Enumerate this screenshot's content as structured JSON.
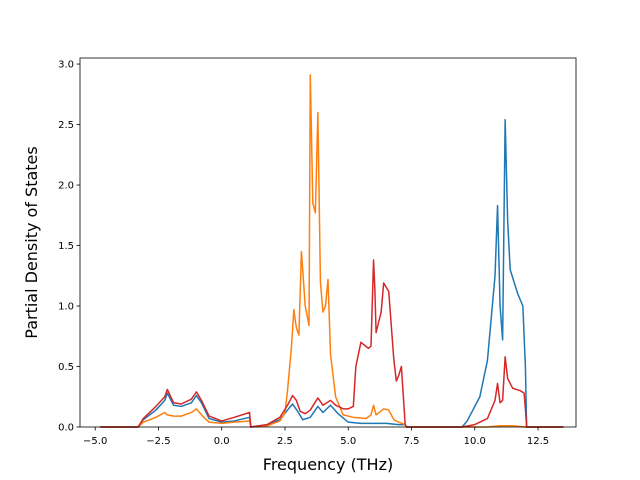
{
  "chart_data": {
    "type": "line",
    "title": "",
    "xlabel": "Frequency (THz)",
    "ylabel": "Partial Density of States",
    "xlim": [
      -5.6,
      14.0
    ],
    "ylim": [
      0,
      3.05
    ],
    "grid": false,
    "legend": "none",
    "xticks": [
      -5.0,
      -2.5,
      0.0,
      2.5,
      5.0,
      7.5,
      10.0,
      12.5
    ],
    "xtick_labels": [
      "−5.0",
      "−2.5",
      "0.0",
      "2.5",
      "5.0",
      "7.5",
      "10.0",
      "12.5"
    ],
    "yticks": [
      0.0,
      0.5,
      1.0,
      1.5,
      2.0,
      2.5,
      3.0
    ],
    "ytick_labels": [
      "0.0",
      "0.5",
      "1.0",
      "1.5",
      "2.0",
      "2.5",
      "3.0"
    ],
    "series": [
      {
        "color": "#1f77b4",
        "x": [
          -4.8,
          -3.3,
          -3.1,
          -2.6,
          -2.25,
          -2.15,
          -1.9,
          -1.6,
          -1.2,
          -1.0,
          -0.8,
          -0.5,
          0.0,
          0.5,
          1.1,
          1.15,
          1.8,
          2.3,
          2.6,
          2.8,
          3.0,
          3.2,
          3.5,
          3.8,
          4.0,
          4.3,
          4.6,
          5.0,
          5.5,
          6.0,
          6.5,
          7.0,
          7.25,
          7.3,
          9.5,
          9.7,
          10.2,
          10.5,
          10.8,
          10.9,
          11.0,
          11.1,
          11.2,
          11.3,
          11.4,
          11.7,
          11.9,
          12.0,
          12.05,
          13.5
        ],
        "y": [
          0.0,
          0.0,
          0.06,
          0.14,
          0.22,
          0.28,
          0.18,
          0.17,
          0.2,
          0.26,
          0.2,
          0.07,
          0.04,
          0.05,
          0.08,
          0.0,
          0.02,
          0.06,
          0.14,
          0.19,
          0.13,
          0.06,
          0.08,
          0.17,
          0.12,
          0.18,
          0.11,
          0.04,
          0.03,
          0.03,
          0.03,
          0.02,
          0.02,
          0.0,
          0.0,
          0.05,
          0.25,
          0.55,
          1.25,
          1.83,
          1.0,
          0.72,
          2.54,
          1.7,
          1.3,
          1.1,
          1.0,
          0.5,
          0.0,
          0.0
        ]
      },
      {
        "color": "#ff7f0e",
        "x": [
          -4.8,
          -3.3,
          -3.1,
          -2.6,
          -2.25,
          -2.15,
          -1.9,
          -1.6,
          -1.2,
          -1.0,
          -0.8,
          -0.5,
          0.0,
          0.5,
          1.1,
          1.15,
          1.8,
          2.3,
          2.5,
          2.6,
          2.75,
          2.85,
          2.95,
          3.05,
          3.15,
          3.3,
          3.45,
          3.5,
          3.6,
          3.7,
          3.8,
          3.9,
          4.0,
          4.1,
          4.2,
          4.3,
          4.5,
          4.8,
          5.2,
          5.7,
          5.9,
          6.0,
          6.1,
          6.4,
          6.6,
          6.8,
          7.0,
          7.25,
          7.3,
          10.5,
          11.0,
          11.5,
          12.0,
          13.5
        ],
        "y": [
          0.0,
          0.0,
          0.04,
          0.08,
          0.12,
          0.1,
          0.09,
          0.09,
          0.12,
          0.15,
          0.1,
          0.04,
          0.03,
          0.04,
          0.05,
          0.0,
          0.01,
          0.05,
          0.12,
          0.3,
          0.65,
          0.97,
          0.82,
          0.76,
          1.45,
          1.0,
          0.84,
          2.91,
          1.85,
          1.77,
          2.6,
          1.2,
          0.95,
          1.0,
          1.22,
          0.6,
          0.25,
          0.1,
          0.08,
          0.07,
          0.1,
          0.18,
          0.1,
          0.15,
          0.14,
          0.06,
          0.04,
          0.02,
          0.0,
          0.0,
          0.01,
          0.01,
          0.0,
          0.0
        ]
      },
      {
        "color": "#d62728",
        "x": [
          -4.8,
          -3.3,
          -3.1,
          -2.6,
          -2.25,
          -2.15,
          -1.9,
          -1.6,
          -1.2,
          -1.0,
          -0.8,
          -0.5,
          0.0,
          0.5,
          1.1,
          1.15,
          1.8,
          2.3,
          2.6,
          2.8,
          2.95,
          3.1,
          3.3,
          3.5,
          3.8,
          4.0,
          4.3,
          4.5,
          4.8,
          5.0,
          5.2,
          5.3,
          5.5,
          5.8,
          5.9,
          6.0,
          6.05,
          6.1,
          6.3,
          6.4,
          6.6,
          6.8,
          6.9,
          7.0,
          7.1,
          7.25,
          7.3,
          9.5,
          10.0,
          10.5,
          10.8,
          10.9,
          11.0,
          11.1,
          11.2,
          11.3,
          11.5,
          11.8,
          11.95,
          12.0,
          12.05,
          13.5
        ],
        "y": [
          0.0,
          0.0,
          0.07,
          0.17,
          0.25,
          0.31,
          0.2,
          0.19,
          0.23,
          0.29,
          0.22,
          0.09,
          0.05,
          0.08,
          0.12,
          0.0,
          0.02,
          0.08,
          0.18,
          0.26,
          0.22,
          0.13,
          0.11,
          0.14,
          0.24,
          0.18,
          0.22,
          0.18,
          0.15,
          0.15,
          0.17,
          0.5,
          0.7,
          0.65,
          0.67,
          1.38,
          1.15,
          0.78,
          0.95,
          1.19,
          1.12,
          0.56,
          0.38,
          0.43,
          0.5,
          0.02,
          0.0,
          0.0,
          0.02,
          0.07,
          0.22,
          0.36,
          0.2,
          0.22,
          0.58,
          0.4,
          0.32,
          0.3,
          0.28,
          0.15,
          0.0,
          0.0
        ]
      }
    ]
  }
}
